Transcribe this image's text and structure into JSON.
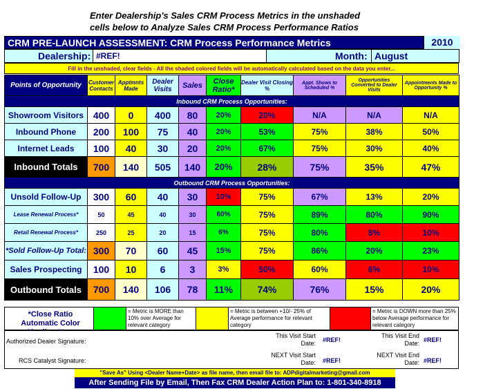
{
  "instructions": {
    "line1": "Enter Dealership's Sales CRM Process Metrics in the unshaded",
    "line2": "cells below to Analyze Sales CRM Process Performance Ratios"
  },
  "title_bar": {
    "title": "CRM PRE-LAUNCH ASSESSMENT:  CRM Process Performance Metrics",
    "year": "2010"
  },
  "dealer_row": {
    "dealership_label": "Dealership:",
    "dealership_value": "#REF!",
    "month_label": "Month:",
    "month_value": "August"
  },
  "fill_note": "Fill in the unshaded, clear fields - All the shaded colored fields will be automatically calculated based on the data you enter...",
  "columns": {
    "points": "Points of Opportunity",
    "customer_contacts": "Customer Contacts",
    "apptmnts_made": "Apptmnts Made",
    "dealer_visits": "Dealer Visits",
    "sales": "Sales",
    "close_ratio": "Close Ratio*",
    "dv_closing": "Dealer Visit Closing %",
    "appt_shows": "Appt. Shows to Scheduled %",
    "opp_converted": "Opportunities Converted to Dealer Visits",
    "appt_made_opp": "Appointments Made to Opportunity %"
  },
  "inbound_section": "Inbound CRM Process Opportunities:",
  "inbound_rows": [
    {
      "label": "Showroom Visitors",
      "c": "400",
      "a": "0",
      "d": "400",
      "s": "80",
      "cr": "20%",
      "dvc": "20%",
      "as": "N/A",
      "oc": "N/A",
      "am": "N/A"
    },
    {
      "label": "Inbound Phone",
      "c": "200",
      "a": "100",
      "d": "75",
      "s": "40",
      "cr": "20%",
      "dvc": "53%",
      "as": "75%",
      "oc": "38%",
      "am": "50%"
    },
    {
      "label": "Internet Leads",
      "c": "100",
      "a": "40",
      "d": "30",
      "s": "20",
      "cr": "20%",
      "dvc": "67%",
      "as": "75%",
      "oc": "30%",
      "am": "40%"
    }
  ],
  "inbound_total": {
    "label": "Inbound Totals",
    "c": "700",
    "a": "140",
    "d": "505",
    "s": "140",
    "cr": "20%",
    "dvc": "28%",
    "as": "75%",
    "oc": "35%",
    "am": "47%"
  },
  "outbound_section": "Outbound CRM Process Opportunities:",
  "outbound_rows": [
    {
      "label": "Unsold Follow-Up",
      "c": "300",
      "a": "60",
      "d": "40",
      "s": "30",
      "cr": "10%",
      "dvc": "75%",
      "as": "67%",
      "oc": "13%",
      "am": "20%"
    },
    {
      "label": "Lease Renewal Process*",
      "c": "50",
      "a": "45",
      "d": "40",
      "s": "30",
      "cr": "60%",
      "dvc": "75%",
      "as": "89%",
      "oc": "80%",
      "am": "90%"
    },
    {
      "label": "Retail Renewal Process*",
      "c": "250",
      "a": "25",
      "d": "20",
      "s": "15",
      "cr": "6%",
      "dvc": "75%",
      "as": "80%",
      "oc": "8%",
      "am": "10%"
    },
    {
      "label": "*Sold Follow-Up Total:",
      "c": "300",
      "a": "70",
      "d": "60",
      "s": "45",
      "cr": "15%",
      "dvc": "75%",
      "as": "86%",
      "oc": "20%",
      "am": "23%"
    },
    {
      "label": "Sales Prospecting",
      "c": "100",
      "a": "10",
      "d": "6",
      "s": "3",
      "cr": "3%",
      "dvc": "50%",
      "as": "60%",
      "oc": "6%",
      "am": "10%"
    }
  ],
  "outbound_total": {
    "label": "Outbound Totals",
    "c": "700",
    "a": "140",
    "d": "106",
    "s": "78",
    "cr": "11%",
    "dvc": "74%",
    "as": "76%",
    "oc": "15%",
    "am": "20%"
  },
  "legend": {
    "label": "*Close Ratio Automatic Color Shading Key:",
    "more": "= Metric is MORE than 10% over Average for relevant category",
    "between": "= Metric is between +10/- 25% of Average performance for relevant category",
    "down": "= Metric is DOWN more than 25% below Average performance for relevant category"
  },
  "signatures": {
    "authorized": "Authorized Dealer Signature:",
    "this_start_label": "This Visit Start Date:",
    "this_start_value": "#REF!",
    "this_end_label": "This Visit End Date:",
    "this_end_value": "#REF!",
    "rcs": "RCS Catalyst Signature:",
    "next_start_label": "NEXT Visit Start Date:",
    "next_start_value": "#REF!",
    "next_end_label": "NEXT Visit End Date:",
    "next_end_value": "#REF!"
  },
  "footer": {
    "save_as": "\"Save As\" Using <Dealer Name+Date> as file name, then email file to: ADPdigitalmarketing@gmail.com",
    "fax": "After Sending File by Email, Then Fax CRM Dealer Action Plan to: 1-801-340-8918"
  },
  "colors": {
    "navy": "#000080",
    "yellow": "#ffff00",
    "light_blue": "#ccffff",
    "purple": "#cc99ff",
    "green": "#00ff00",
    "dark_green": "#99cc00",
    "red": "#ff0000",
    "orange": "#ff9900"
  }
}
